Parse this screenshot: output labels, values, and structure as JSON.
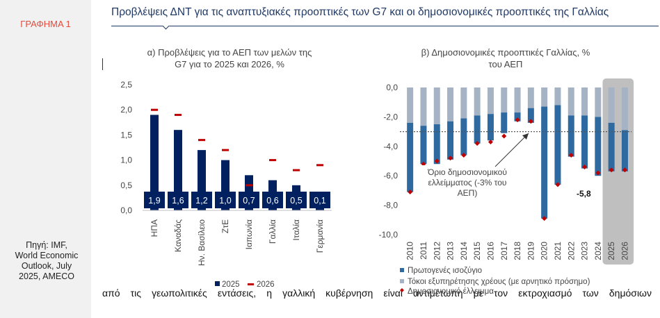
{
  "page": {
    "figure_label": "ΓΡΑΦΗΜΑ 1",
    "title": "Προβλέψεις ΔΝΤ για τις αναπτυξιακές προοπτικές των G7 και οι δημοσιονομικές προοπτικές της Γαλλίας",
    "source_lines": [
      "Πηγή: IMF,",
      "World Economic",
      "Outlook, July",
      "2025, AMECO"
    ],
    "body_text": "από τις γεωπολιτικές εντάσεις, η γαλλική κυβέρνηση είναι αντιμέτωπη με τον εκτροχιασμό των δημόσιων"
  },
  "colors": {
    "navy": "#002060",
    "red": "#c00000",
    "blue": "#2e6aa0",
    "grey": "#a5b3c4",
    "band": "#bfbfbf"
  },
  "chart_data": [
    {
      "type": "bar",
      "title": "α) Προβλέψεις για το ΑΕΠ των μελών της G7 για το 2025 και 2026, %",
      "title_lines": [
        "α) Προβλέψεις για το ΑΕΠ των μελών της",
        "G7 για το 2025 και 2026, %"
      ],
      "categories": [
        "ΗΠΑ",
        "Καναδάς",
        "Ην. Βασίλειο",
        "ΖτΕ",
        "Ιαπωνία",
        "Γαλλία",
        "Ιταλία",
        "Γερμανία"
      ],
      "series": [
        {
          "name": "2025",
          "values": [
            1.9,
            1.6,
            1.2,
            1.0,
            0.7,
            0.6,
            0.5,
            0.1
          ]
        },
        {
          "name": "2026",
          "values": [
            2.0,
            1.9,
            1.4,
            1.2,
            0.5,
            1.0,
            0.8,
            0.9
          ]
        }
      ],
      "data_labels": [
        "1,9",
        "1,6",
        "1,2",
        "1,0",
        "0,7",
        "0,6",
        "0,5",
        "0,1"
      ],
      "yticks": [
        "0,0",
        "0,5",
        "1,0",
        "1,5",
        "2,0",
        "2,5"
      ],
      "ylim": [
        0,
        2.5
      ],
      "legend": [
        "2025",
        "2026"
      ],
      "legend_position": "bottom"
    },
    {
      "type": "bar",
      "title": "β) Δημοσιονομικές προοπτικές Γαλλίας, % του ΑΕΠ",
      "title_lines": [
        "β) Δημοσιονομικές προοπτικές Γαλλίας, %",
        "του ΑΕΠ"
      ],
      "categories": [
        "2010",
        "2011",
        "2012",
        "2013",
        "2014",
        "2015",
        "2016",
        "2017",
        "2018",
        "2019",
        "2020",
        "2021",
        "2022",
        "2023",
        "2024",
        "2025",
        "2026"
      ],
      "series": [
        {
          "name": "Πρωτογενές ισοζύγιο",
          "values": [
            -4.7,
            -2.6,
            -2.7,
            -2.6,
            -2.5,
            -1.9,
            -1.8,
            -1.4,
            -0.6,
            -1.0,
            -7.6,
            -5.4,
            -2.8,
            -3.6,
            -4.0,
            -3.3,
            -2.8
          ]
        },
        {
          "name": "Τόκοι εξυπηρέτησης χρέους (με αρνητικό πρόσημο)",
          "values": [
            -2.4,
            -2.6,
            -2.5,
            -2.3,
            -2.1,
            -1.9,
            -1.8,
            -1.7,
            -1.7,
            -1.4,
            -1.3,
            -1.2,
            -1.9,
            -1.9,
            -2.0,
            -2.4,
            -2.9
          ]
        },
        {
          "name": "Δημοσιονομικό έλλειμμα",
          "values": [
            -7.1,
            -5.2,
            -5.0,
            -4.8,
            -4.6,
            -3.8,
            -3.7,
            -3.3,
            -2.2,
            -2.3,
            -8.9,
            -6.6,
            -4.6,
            -5.4,
            -5.8,
            -5.6,
            -5.6
          ]
        }
      ],
      "yticks": [
        "0,0",
        "-2,0",
        "-4,0",
        "-6,0",
        "-8,0",
        "-10,0"
      ],
      "ylim": [
        -10,
        0
      ],
      "reference_line": -3,
      "annotation_lines": [
        "Όριο δημοσιονομικού",
        "ελλείμματος (-3% του",
        "ΑΕΠ)"
      ],
      "value_label": "-5,8",
      "highlighted_years": [
        "2025",
        "2026"
      ],
      "legend": [
        "Πρωτογενές ισοζύγιο",
        "Τόκοι εξυπηρέτησης χρέους (με αρνητικό πρόσημο)",
        "Δημοσιονομικό έλλειμμα"
      ],
      "legend_position": "bottom"
    }
  ]
}
